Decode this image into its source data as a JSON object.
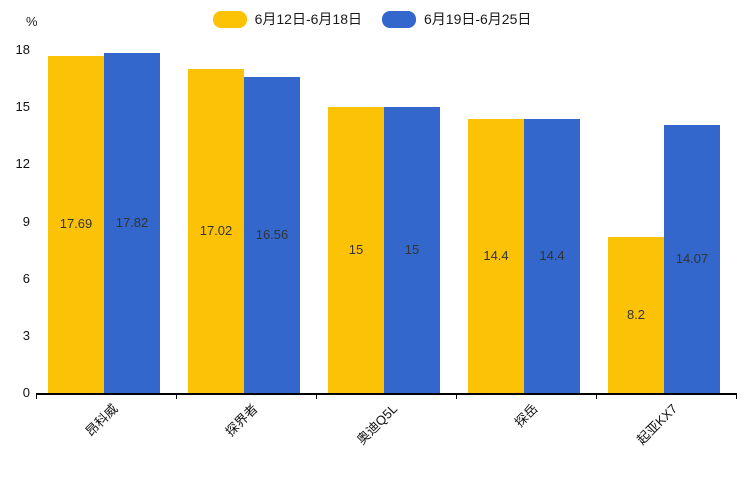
{
  "chart_data": {
    "type": "bar",
    "categories": [
      "昂科威",
      "探界者",
      "奥迪Q5L",
      "探岳",
      "起亚KX7"
    ],
    "series": [
      {
        "name": "6月12日-6月18日",
        "color": "#FCC306",
        "values": [
          17.69,
          17.02,
          15,
          14.4,
          8.2
        ]
      },
      {
        "name": "6月19日-6月25日",
        "color": "#3367CC",
        "values": [
          17.82,
          16.56,
          15,
          14.4,
          14.07
        ]
      }
    ],
    "title": "",
    "xlabel": "",
    "ylabel": "%",
    "ylim": [
      0,
      18
    ],
    "yticks": [
      0,
      3,
      6,
      9,
      12,
      15,
      18
    ],
    "grid": false,
    "legend_position": "top",
    "value_label_color": "#333333",
    "axis_color": "#000000"
  }
}
